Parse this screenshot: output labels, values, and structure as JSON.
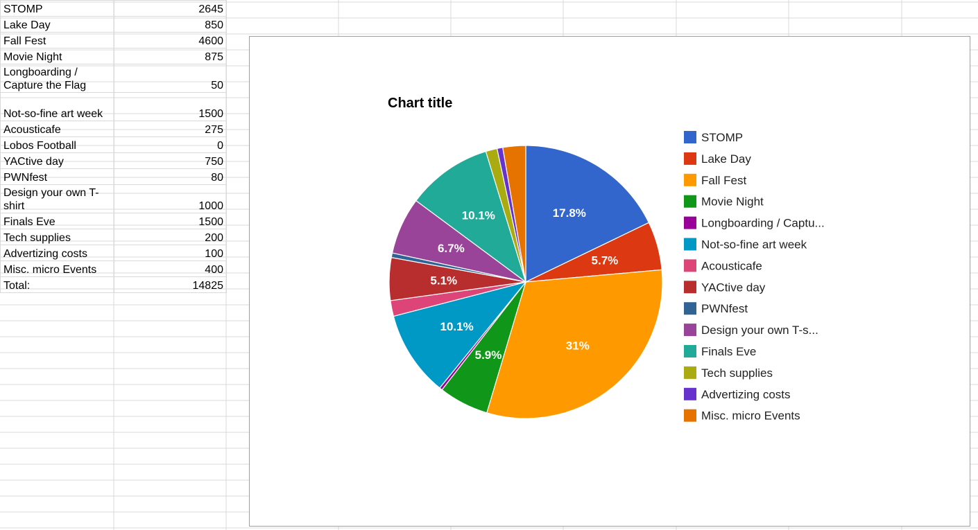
{
  "sheet": {
    "rows": [
      {
        "label": "STOMP",
        "value": "2645"
      },
      {
        "label": "Lake Day",
        "value": "850"
      },
      {
        "label": "Fall Fest",
        "value": "4600"
      },
      {
        "label": "Movie Night",
        "value": "875"
      },
      {
        "label": "Longboarding / Capture the Flag",
        "value": "50"
      },
      {
        "label": "Not-so-fine art week",
        "value": "1500"
      },
      {
        "label": "Acousticafe",
        "value": "275"
      },
      {
        "label": "Lobos Football",
        "value": "0"
      },
      {
        "label": "YACtive day",
        "value": "750"
      },
      {
        "label": "PWNfest",
        "value": "80"
      },
      {
        "label": "Design your own T-shirt",
        "value": "1000"
      },
      {
        "label": "Finals Eve",
        "value": "1500"
      },
      {
        "label": "Tech supplies",
        "value": "200"
      },
      {
        "label": "Advertizing costs",
        "value": "100"
      },
      {
        "label": "Misc. micro Events",
        "value": "400"
      },
      {
        "label": "Total:",
        "value": "14825"
      }
    ]
  },
  "chart_data": {
    "type": "pie",
    "title": "Chart title",
    "legend_position": "right",
    "slices": [
      {
        "name": "STOMP",
        "value": 2645,
        "color": "#3366cc",
        "label": "17.8%"
      },
      {
        "name": "Lake Day",
        "value": 850,
        "color": "#dc3912",
        "label": "5.7%"
      },
      {
        "name": "Fall Fest",
        "value": 4600,
        "color": "#ff9900",
        "label": "31%"
      },
      {
        "name": "Movie Night",
        "value": 875,
        "color": "#109618",
        "label": "5.9%"
      },
      {
        "name": "Longboarding / Captu...",
        "value": 50,
        "color": "#990099",
        "label": ""
      },
      {
        "name": "Not-so-fine art week",
        "value": 1500,
        "color": "#0099c6",
        "label": "10.1%"
      },
      {
        "name": "Acousticafe",
        "value": 275,
        "color": "#dd4477",
        "label": ""
      },
      {
        "name": "YACtive day",
        "value": 750,
        "color": "#b82e2e",
        "label": "5.1%"
      },
      {
        "name": "PWNfest",
        "value": 80,
        "color": "#316395",
        "label": ""
      },
      {
        "name": "Design your own T-s...",
        "value": 1000,
        "color": "#994499",
        "label": "6.7%"
      },
      {
        "name": "Finals Eve",
        "value": 1500,
        "color": "#22aa99",
        "label": "10.1%"
      },
      {
        "name": "Tech supplies",
        "value": 200,
        "color": "#aaaa11",
        "label": ""
      },
      {
        "name": "Advertizing costs",
        "value": 100,
        "color": "#6633cc",
        "label": ""
      },
      {
        "name": "Misc. micro Events",
        "value": 400,
        "color": "#e67300",
        "label": ""
      }
    ]
  }
}
